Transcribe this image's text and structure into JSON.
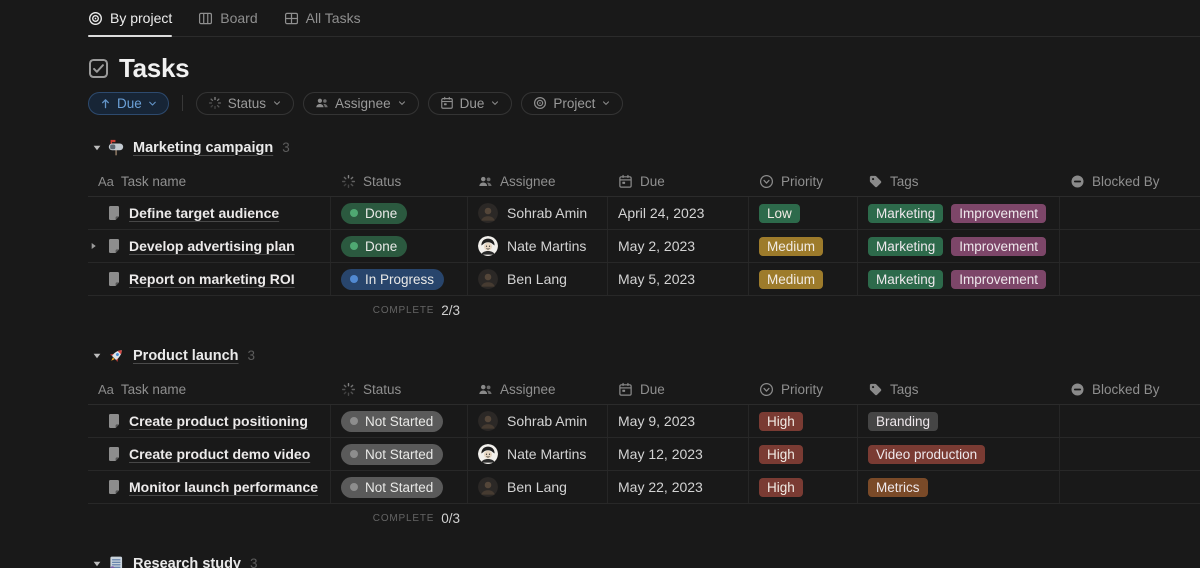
{
  "tabs": [
    {
      "label": "By project",
      "icon": "target",
      "active": true
    },
    {
      "label": "Board",
      "icon": "board",
      "active": false
    },
    {
      "label": "All Tasks",
      "icon": "grid",
      "active": false
    }
  ],
  "page": {
    "title": "Tasks",
    "icon": "checkbox"
  },
  "toolbar": {
    "sort": {
      "label": "Due",
      "icon": "arrow-up"
    },
    "filters": [
      {
        "label": "Status",
        "icon": "spinner"
      },
      {
        "label": "Assignee",
        "icon": "people"
      },
      {
        "label": "Due",
        "icon": "calendar"
      },
      {
        "label": "Project",
        "icon": "target"
      }
    ]
  },
  "columns": [
    {
      "label": "Task name",
      "icon": "Aa"
    },
    {
      "label": "Status",
      "icon": "spinner"
    },
    {
      "label": "Assignee",
      "icon": "people"
    },
    {
      "label": "Due",
      "icon": "calendar"
    },
    {
      "label": "Priority",
      "icon": "priority"
    },
    {
      "label": "Tags",
      "icon": "tag"
    },
    {
      "label": "Blocked By",
      "icon": "no-entry"
    }
  ],
  "groups": [
    {
      "name": "Marketing campaign",
      "icon": "mailbox",
      "count": "3",
      "complete_label": "COMPLETE",
      "complete_value": "2/3",
      "rows": [
        {
          "task": "Define target audience",
          "expandable": false,
          "status": {
            "label": "Done",
            "key": "done"
          },
          "assignee": {
            "name": "Sohrab Amin",
            "avatar": "photo-dark"
          },
          "due": "April 24, 2023",
          "priority": {
            "label": "Low",
            "color": "green"
          },
          "tags": [
            {
              "label": "Marketing",
              "color": "green"
            },
            {
              "label": "Improvement",
              "color": "pink"
            }
          ]
        },
        {
          "task": "Develop advertising plan",
          "expandable": true,
          "status": {
            "label": "Done",
            "key": "done"
          },
          "assignee": {
            "name": "Nate Martins",
            "avatar": "photo-light"
          },
          "due": "May 2, 2023",
          "priority": {
            "label": "Medium",
            "color": "yellow"
          },
          "tags": [
            {
              "label": "Marketing",
              "color": "green"
            },
            {
              "label": "Improvement",
              "color": "pink"
            }
          ]
        },
        {
          "task": "Report on marketing ROI",
          "expandable": false,
          "status": {
            "label": "In Progress",
            "key": "progress"
          },
          "assignee": {
            "name": "Ben Lang",
            "avatar": "photo-dark"
          },
          "due": "May 5, 2023",
          "priority": {
            "label": "Medium",
            "color": "yellow"
          },
          "tags": [
            {
              "label": "Marketing",
              "color": "green"
            },
            {
              "label": "Improvement",
              "color": "pink"
            }
          ]
        }
      ]
    },
    {
      "name": "Product launch",
      "icon": "rocket",
      "count": "3",
      "complete_label": "COMPLETE",
      "complete_value": "0/3",
      "rows": [
        {
          "task": "Create product positioning",
          "expandable": false,
          "status": {
            "label": "Not Started",
            "key": "notstarted"
          },
          "assignee": {
            "name": "Sohrab Amin",
            "avatar": "photo-dark"
          },
          "due": "May 9, 2023",
          "priority": {
            "label": "High",
            "color": "red"
          },
          "tags": [
            {
              "label": "Branding",
              "color": "gray"
            }
          ]
        },
        {
          "task": "Create product demo video",
          "expandable": false,
          "status": {
            "label": "Not Started",
            "key": "notstarted"
          },
          "assignee": {
            "name": "Nate Martins",
            "avatar": "photo-light"
          },
          "due": "May 12, 2023",
          "priority": {
            "label": "High",
            "color": "red"
          },
          "tags": [
            {
              "label": "Video production",
              "color": "red"
            }
          ]
        },
        {
          "task": "Monitor launch performance",
          "expandable": false,
          "status": {
            "label": "Not Started",
            "key": "notstarted"
          },
          "assignee": {
            "name": "Ben Lang",
            "avatar": "photo-dark"
          },
          "due": "May 22, 2023",
          "priority": {
            "label": "High",
            "color": "red"
          },
          "tags": [
            {
              "label": "Metrics",
              "color": "brown"
            }
          ]
        }
      ]
    },
    {
      "name": "Research study",
      "icon": "doc-purple",
      "count": "3",
      "rows": null
    }
  ],
  "palette": {
    "status": {
      "done": {
        "bg": "#2b593f",
        "dot": "#4fa872"
      },
      "progress": {
        "bg": "#28456c",
        "dot": "#5189d1"
      },
      "notstarted": {
        "bg": "#5a5a5a",
        "dot": "#8d8d8d"
      }
    },
    "pill": {
      "green": "#2d6a4b",
      "yellow": "#9d7b2b",
      "red": "#7a3b33",
      "pink": "#7d4669",
      "gray": "#454545",
      "brown": "#7a4a28"
    },
    "accent_blue": "#6ba0d7"
  }
}
